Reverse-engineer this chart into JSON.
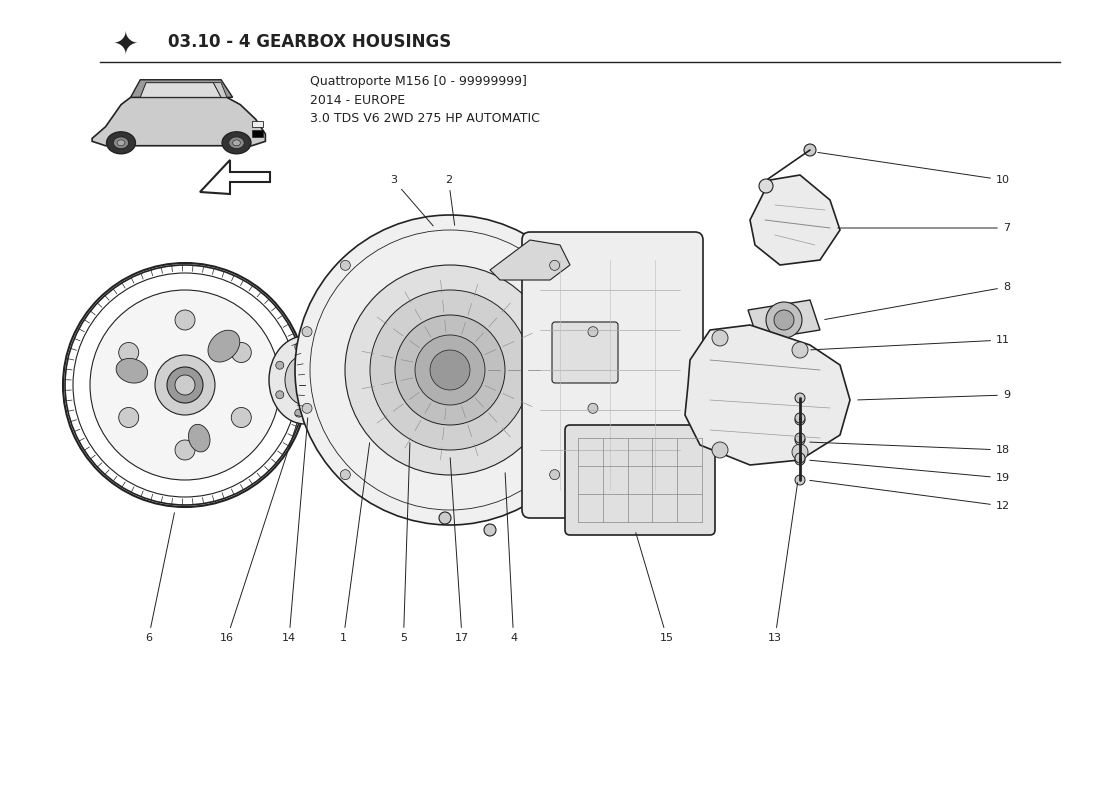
{
  "title": "03.10 - 4 GEARBOX HOUSINGS",
  "car_info_line1": "Quattroporte M156 [0 - 99999999]",
  "car_info_line2": "2014 - EUROPE",
  "car_info_line3": "3.0 TDS V6 2WD 275 HP AUTOMATIC",
  "bg_color": "#ffffff",
  "line_color": "#222222",
  "title_fontsize": 12,
  "info_fontsize": 9,
  "label_fontsize": 8
}
